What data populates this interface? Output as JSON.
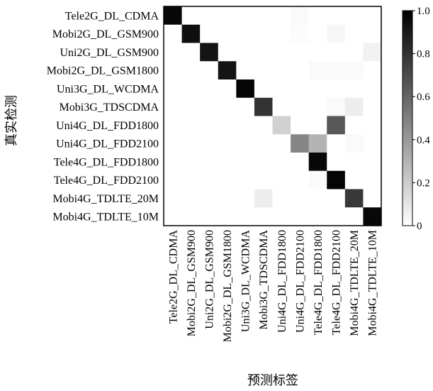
{
  "chart_data": {
    "type": "heatmap",
    "title": "",
    "xlabel": "预测标签",
    "ylabel": "真实检测",
    "x_categories": [
      "Tele2G_DL_CDMA",
      "Mobi2G_DL_GSM900",
      "Uni2G_DL_GSM900",
      "Mobi2G_DL_GSM1800",
      "Uni3G_DL_WCDMA",
      "Mobi3G_TDSCDMA",
      "Uni4G_DL_FDD1800",
      "Uni4G_DL_FDD2100",
      "Tele4G_DL_FDD1800",
      "Tele4G_DL_FDD2100",
      "Mobi4G_TDLTE_20M",
      "Mobi4G_TDLTE_10M"
    ],
    "y_categories": [
      "Tele2G_DL_CDMA",
      "Mobi2G_DL_GSM900",
      "Uni2G_DL_GSM900",
      "Mobi2G_DL_GSM1800",
      "Uni3G_DL_WCDMA",
      "Mobi3G_TDSCDMA",
      "Uni4G_DL_FDD1800",
      "Uni4G_DL_FDD2100",
      "Tele4G_DL_FDD1800",
      "Tele4G_DL_FDD2100",
      "Mobi4G_TDLTE_20M",
      "Mobi4G_TDLTE_10M"
    ],
    "values": [
      [
        0.97,
        0,
        0,
        0,
        0,
        0,
        0,
        0.02,
        0,
        0,
        0,
        0
      ],
      [
        0,
        0.94,
        0,
        0,
        0,
        0,
        0,
        0.01,
        0,
        0.03,
        0,
        0
      ],
      [
        0,
        0,
        0.92,
        0,
        0,
        0,
        0,
        0,
        0,
        0,
        0,
        0.05
      ],
      [
        0,
        0,
        0,
        0.92,
        0,
        0,
        0,
        0,
        0.02,
        0.02,
        0.02,
        0
      ],
      [
        0,
        0,
        0,
        0,
        0.98,
        0,
        0,
        0,
        0,
        0,
        0,
        0
      ],
      [
        0,
        0,
        0,
        0,
        0,
        0.8,
        0,
        0,
        0,
        0.02,
        0.07,
        0
      ],
      [
        0,
        0,
        0,
        0,
        0,
        0,
        0.18,
        0,
        0,
        0.66,
        0,
        0
      ],
      [
        0,
        0,
        0,
        0,
        0,
        0,
        0,
        0.48,
        0.3,
        0,
        0.02,
        0
      ],
      [
        0,
        0,
        0,
        0,
        0,
        0,
        0,
        0,
        0.97,
        0,
        0,
        0
      ],
      [
        0,
        0,
        0,
        0,
        0,
        0,
        0,
        0,
        0.02,
        0.98,
        0,
        0
      ],
      [
        0,
        0,
        0,
        0,
        0,
        0.07,
        0,
        0,
        0,
        0,
        0.78,
        0
      ],
      [
        0,
        0,
        0,
        0,
        0,
        0,
        0,
        0,
        0,
        0,
        0,
        0.97
      ]
    ],
    "colorbar": {
      "min": 0,
      "max": 1.0,
      "ticks": [
        "0",
        "0.2",
        "0.4",
        "0.6",
        "0.8",
        "1.0"
      ],
      "colormap": "grays"
    },
    "grid": false
  }
}
